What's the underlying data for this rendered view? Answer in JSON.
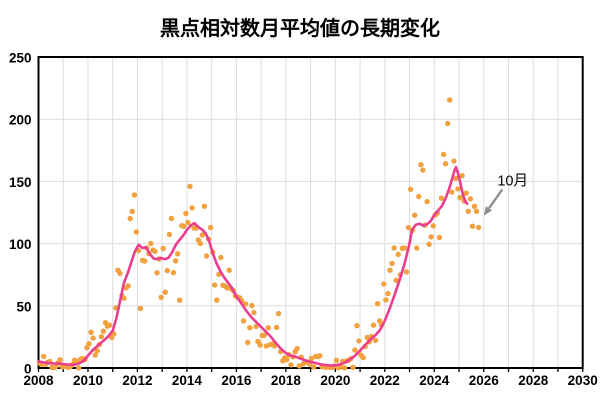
{
  "title": "黒点相対数月平均値の長期変化",
  "chart_data": {
    "type": "scatter",
    "title": "黒点相対数月平均値の長期変化",
    "xlabel": "",
    "ylabel": "",
    "xlim": [
      2008,
      2030
    ],
    "ylim": [
      0,
      250
    ],
    "grid": "on",
    "x_grid_step_years": 1,
    "y_tick_step": 50,
    "x_ticks": [
      2008,
      2010,
      2012,
      2014,
      2016,
      2018,
      2020,
      2022,
      2024,
      2026,
      2028,
      2030
    ],
    "y_ticks": [
      0,
      50,
      100,
      150,
      200,
      250
    ],
    "grid_color": "#dcdcdc",
    "axes_color": "#000000",
    "scatter_series": {
      "name": "monthly-mean-sunspot-number",
      "color": "#f1a13e",
      "point_radius": 2.7,
      "monthly_values_by_year": {
        "2008": [
          4.1,
          2.9,
          9.3,
          2.9,
          4.6,
          5.2,
          0.6,
          0.3,
          1.2,
          4.2,
          6.6,
          1.0
        ],
        "2009": [
          1.3,
          1.2,
          0.6,
          1.2,
          2.9,
          6.3,
          5.5,
          0.0,
          7.1,
          7.7,
          6.9,
          16.3
        ],
        "2010": [
          19.5,
          28.7,
          24.0,
          10.4,
          13.9,
          18.8,
          25.2,
          29.6,
          36.4,
          33.6,
          34.4,
          24.5
        ],
        "2011": [
          27.3,
          48.3,
          78.6,
          76.1,
          58.2,
          56.1,
          64.5,
          66.0,
          120.1,
          125.8,
          139.1,
          109.3
        ],
        "2012": [
          94.4,
          47.8,
          86.6,
          85.9,
          96.5,
          92.0,
          100.1,
          94.8,
          93.7,
          76.5,
          87.6,
          56.8
        ],
        "2013": [
          96.1,
          60.9,
          78.3,
          107.3,
          120.2,
          76.7,
          86.2,
          91.8,
          54.5,
          114.4,
          113.9,
          124.2
        ],
        "2014": [
          117.0,
          146.1,
          128.7,
          112.5,
          112.5,
          102.9,
          100.2,
          106.9,
          130.0,
          90.0,
          103.6,
          112.9
        ],
        "2015": [
          93.0,
          66.7,
          54.5,
          75.3,
          88.8,
          66.5,
          65.8,
          64.4,
          78.6,
          63.6,
          62.2,
          58.0
        ],
        "2016": [
          57.0,
          56.4,
          54.1,
          37.9,
          51.5,
          20.5,
          32.4,
          50.2,
          44.6,
          33.4,
          21.4,
          18.5
        ],
        "2017": [
          26.1,
          26.4,
          17.7,
          32.3,
          18.9,
          19.2,
          17.8,
          32.6,
          43.7,
          13.2,
          5.7,
          8.2
        ],
        "2018": [
          6.8,
          10.7,
          2.5,
          8.9,
          13.1,
          15.6,
          1.6,
          8.7,
          3.3,
          4.9,
          4.9,
          3.1
        ],
        "2019": [
          7.7,
          0.8,
          9.4,
          9.1,
          9.9,
          1.2,
          0.9,
          0.5,
          1.1,
          0.4,
          0.5,
          1.5
        ],
        "2020": [
          6.2,
          0.2,
          1.5,
          5.2,
          0.2,
          5.8,
          6.1,
          7.5,
          0.6,
          14.4,
          34.0,
          21.8
        ],
        "2021": [
          10.4,
          8.4,
          17.3,
          24.5,
          21.0,
          25.4,
          34.4,
          22.2,
          51.7,
          37.9,
          34.6,
          67.6
        ],
        "2022": [
          54.7,
          59.8,
          78.6,
          84.1,
          96.5,
          70.5,
          91.4,
          75.0,
          96.2,
          96.5,
          77.2,
          112.9
        ],
        "2023": [
          143.6,
          110.5,
          122.8,
          96.4,
          137.9,
          163.4,
          159.1,
          114.8,
          133.8,
          99.4,
          105.4,
          114.2
        ],
        "2024": [
          123.0,
          124.7,
          104.9,
          136.5,
          171.7,
          164.2,
          196.5,
          215.5,
          141.4,
          166.3,
          152.5,
          144.0
        ],
        "2025": [
          137.0,
          154.6,
          134.2,
          140.6,
          126.0,
          136.0,
          114.0,
          130.0,
          126.0,
          113.0
        ]
      }
    },
    "line_series": {
      "name": "smoothed-sunspot-number",
      "color": "#ea3d8f",
      "stroke_width": 2.6,
      "points": [
        [
          2008.0,
          5.2
        ],
        [
          2008.2,
          4.5
        ],
        [
          2008.4,
          4.0
        ],
        [
          2008.6,
          3.7
        ],
        [
          2008.8,
          3.5
        ],
        [
          2009.0,
          3.2
        ],
        [
          2009.2,
          2.7
        ],
        [
          2009.4,
          2.6
        ],
        [
          2009.6,
          3.4
        ],
        [
          2009.8,
          5.2
        ],
        [
          2010.0,
          10.0
        ],
        [
          2010.2,
          14.5
        ],
        [
          2010.4,
          18.0
        ],
        [
          2010.6,
          21.5
        ],
        [
          2010.8,
          25.0
        ],
        [
          2011.0,
          30.0
        ],
        [
          2011.15,
          40.0
        ],
        [
          2011.3,
          54.0
        ],
        [
          2011.45,
          68.0
        ],
        [
          2011.6,
          76.0
        ],
        [
          2011.75,
          85.0
        ],
        [
          2011.9,
          94.0
        ],
        [
          2012.05,
          99.0
        ],
        [
          2012.2,
          96.5
        ],
        [
          2012.35,
          97.0
        ],
        [
          2012.5,
          92.0
        ],
        [
          2012.65,
          88.0
        ],
        [
          2012.8,
          87.5
        ],
        [
          2012.95,
          88.5
        ],
        [
          2013.1,
          87.5
        ],
        [
          2013.25,
          88.5
        ],
        [
          2013.4,
          93.0
        ],
        [
          2013.55,
          99.0
        ],
        [
          2013.7,
          103.0
        ],
        [
          2013.85,
          106.5
        ],
        [
          2014.0,
          111.0
        ],
        [
          2014.15,
          114.5
        ],
        [
          2014.3,
          116.5
        ],
        [
          2014.45,
          113.5
        ],
        [
          2014.6,
          111.5
        ],
        [
          2014.75,
          108.5
        ],
        [
          2014.9,
          102.0
        ],
        [
          2015.05,
          92.0
        ],
        [
          2015.2,
          84.0
        ],
        [
          2015.35,
          78.0
        ],
        [
          2015.5,
          73.0
        ],
        [
          2015.65,
          69.0
        ],
        [
          2015.8,
          65.0
        ],
        [
          2016.0,
          57.5
        ],
        [
          2016.2,
          52.0
        ],
        [
          2016.4,
          46.0
        ],
        [
          2016.6,
          41.0
        ],
        [
          2016.8,
          37.0
        ],
        [
          2017.0,
          33.0
        ],
        [
          2017.2,
          29.0
        ],
        [
          2017.4,
          25.0
        ],
        [
          2017.6,
          20.0
        ],
        [
          2017.8,
          15.5
        ],
        [
          2018.0,
          12.0
        ],
        [
          2018.2,
          10.0
        ],
        [
          2018.4,
          9.0
        ],
        [
          2018.6,
          7.5
        ],
        [
          2018.8,
          6.0
        ],
        [
          2019.0,
          5.0
        ],
        [
          2019.2,
          4.0
        ],
        [
          2019.4,
          3.0
        ],
        [
          2019.6,
          2.4
        ],
        [
          2019.8,
          2.0
        ],
        [
          2020.0,
          2.2
        ],
        [
          2020.2,
          3.0
        ],
        [
          2020.4,
          4.5
        ],
        [
          2020.6,
          7.0
        ],
        [
          2020.8,
          10.0
        ],
        [
          2021.0,
          14.0
        ],
        [
          2021.2,
          18.5
        ],
        [
          2021.4,
          22.5
        ],
        [
          2021.6,
          26.0
        ],
        [
          2021.8,
          30.5
        ],
        [
          2022.0,
          38.0
        ],
        [
          2022.2,
          48.0
        ],
        [
          2022.4,
          59.0
        ],
        [
          2022.6,
          71.0
        ],
        [
          2022.8,
          84.0
        ],
        [
          2023.0,
          100.0
        ],
        [
          2023.1,
          111.0
        ],
        [
          2023.25,
          115.0
        ],
        [
          2023.4,
          116.0
        ],
        [
          2023.55,
          114.5
        ],
        [
          2023.7,
          115.5
        ],
        [
          2023.85,
          118.0
        ],
        [
          2024.0,
          123.0
        ],
        [
          2024.15,
          126.5
        ],
        [
          2024.3,
          130.0
        ],
        [
          2024.45,
          136.0
        ],
        [
          2024.6,
          144.0
        ],
        [
          2024.72,
          152.0
        ],
        [
          2024.82,
          159.0
        ],
        [
          2024.88,
          161.5
        ],
        [
          2024.95,
          157.0
        ],
        [
          2025.05,
          149.0
        ],
        [
          2025.15,
          140.0
        ],
        [
          2025.25,
          134.0
        ],
        [
          2025.33,
          132.0
        ]
      ]
    },
    "annotation": {
      "text": "10月",
      "color": "#000000",
      "arrow_color": "#8f8f8f",
      "text_pos": [
        2026.55,
        150
      ],
      "arrow_from": [
        2026.75,
        143.5
      ],
      "arrow_to": [
        2026.0,
        122.5
      ]
    }
  }
}
